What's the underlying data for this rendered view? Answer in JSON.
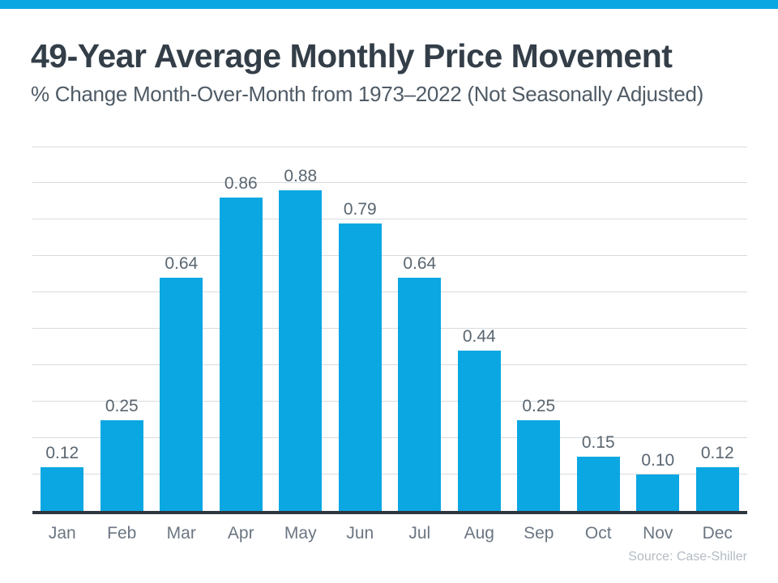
{
  "page": {
    "accent_color": "#0ba7e2",
    "background_color": "#ffffff"
  },
  "chart_data": {
    "type": "bar",
    "title": "49-Year Average Monthly Price Movement",
    "subtitle": "% Change Month-Over-Month from 1973–2022 (Not Seasonally Adjusted)",
    "categories": [
      "Jan",
      "Feb",
      "Mar",
      "Apr",
      "May",
      "Jun",
      "Jul",
      "Aug",
      "Sep",
      "Oct",
      "Nov",
      "Dec"
    ],
    "values": [
      0.12,
      0.25,
      0.64,
      0.86,
      0.88,
      0.79,
      0.64,
      0.44,
      0.25,
      0.15,
      0.1,
      0.12
    ],
    "value_labels": [
      "0.12",
      "0.25",
      "0.64",
      "0.86",
      "0.88",
      "0.79",
      "0.64",
      "0.44",
      "0.25",
      "0.15",
      "0.10",
      "0.12"
    ],
    "xlabel": "",
    "ylabel": "",
    "ylim": [
      0,
      1.0
    ],
    "gridline_step": 0.1,
    "grid": true,
    "legend": "none",
    "bar_color": "#0ba7e2",
    "source": "Source: Case-Shiller"
  }
}
